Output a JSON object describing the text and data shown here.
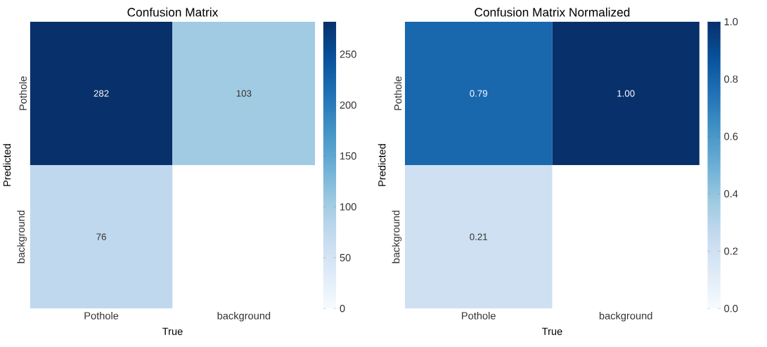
{
  "chart_data": [
    {
      "type": "heatmap",
      "title": "Confusion Matrix",
      "xlabel": "True",
      "ylabel": "Predicted",
      "categories": [
        "Pothole",
        "background"
      ],
      "y_categories": [
        "Pothole",
        "background"
      ],
      "cells": [
        [
          282,
          103
        ],
        [
          76,
          null
        ]
      ],
      "data_labels": true,
      "clim": [
        0,
        282
      ],
      "cticks": [
        0,
        50,
        100,
        150,
        200,
        250
      ]
    },
    {
      "type": "heatmap",
      "title": "Confusion Matrix Normalized",
      "xlabel": "True",
      "ylabel": "Predicted",
      "categories": [
        "Pothole",
        "background"
      ],
      "y_categories": [
        "Pothole",
        "background"
      ],
      "cells": [
        [
          0.79,
          1.0
        ],
        [
          0.21,
          null
        ]
      ],
      "cell_labels": [
        [
          "0.79",
          "1.00"
        ],
        [
          "0.21",
          null
        ]
      ],
      "clim": [
        0,
        1
      ],
      "cticks": [
        {
          "value": 0,
          "label": "0.0"
        },
        {
          "value": 0.2,
          "label": "0.2"
        },
        {
          "value": 0.4,
          "label": "0.4"
        },
        {
          "value": 0.6,
          "label": "0.6"
        },
        {
          "value": 0.8,
          "label": "0.8"
        },
        {
          "value": 1,
          "label": "1.0"
        }
      ]
    }
  ]
}
